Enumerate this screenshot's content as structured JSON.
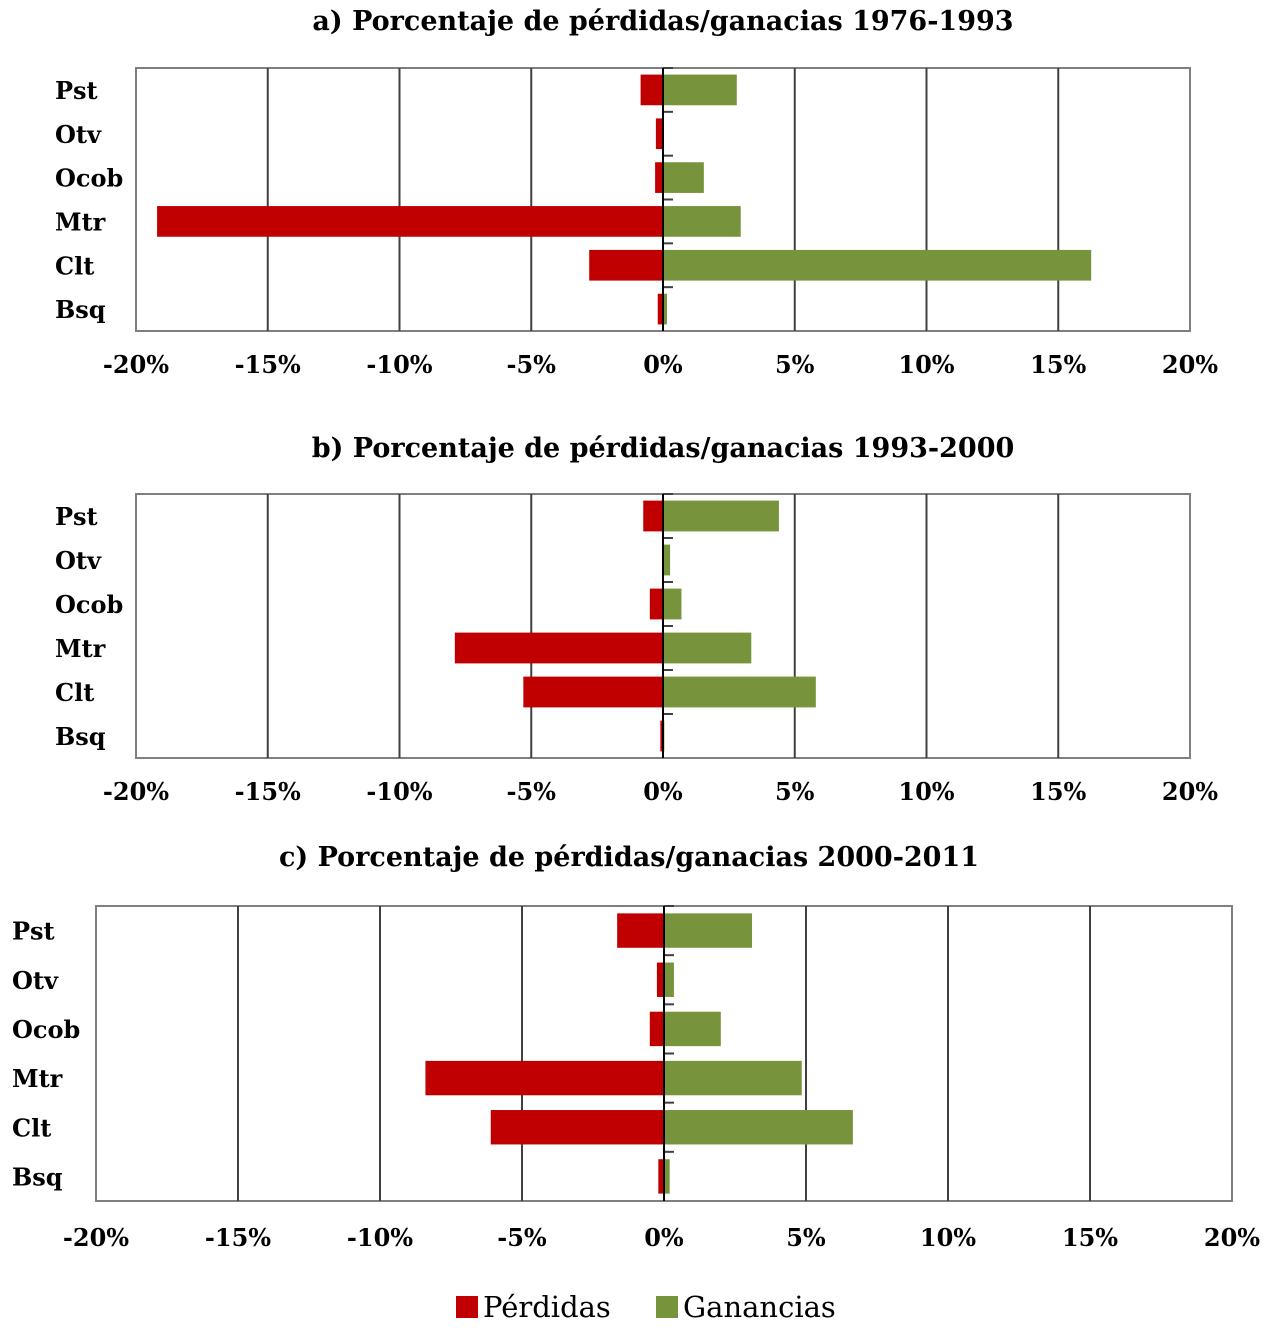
{
  "colors": {
    "loss": "#c00000",
    "gain": "#77933c"
  },
  "legend": [
    {
      "label": "Pérdidas",
      "series": "loss"
    },
    {
      "label": "Ganancias",
      "series": "gain"
    }
  ],
  "chart_data": [
    {
      "type": "bar",
      "orientation": "horizontal",
      "title": "a) Porcentaje de pérdidas/ganacias 1976-1993",
      "categories": [
        "Pst",
        "Otv",
        "Ocob",
        "Mtr",
        "Clt",
        "Bsq"
      ],
      "xlim": [
        -20,
        20
      ],
      "xticks": [
        "-20%",
        "-15%",
        "-10%",
        "-5%",
        "0%",
        "5%",
        "10%",
        "15%",
        "20%"
      ],
      "grid": true,
      "series": [
        {
          "name": "Pérdidas",
          "values": [
            -0.85,
            -0.27,
            -0.3,
            -19.2,
            -2.8,
            -0.2
          ]
        },
        {
          "name": "Ganancias",
          "values": [
            2.8,
            0,
            1.55,
            2.95,
            16.25,
            0.15
          ]
        }
      ]
    },
    {
      "type": "bar",
      "orientation": "horizontal",
      "title": "b) Porcentaje de pérdidas/ganacias 1993-2000",
      "categories": [
        "Pst",
        "Otv",
        "Ocob",
        "Mtr",
        "Clt",
        "Bsq"
      ],
      "xlim": [
        -20,
        20
      ],
      "xticks": [
        "-20%",
        "-15%",
        "-10%",
        "-5%",
        "0%",
        "5%",
        "10%",
        "15%",
        "20%"
      ],
      "grid": true,
      "series": [
        {
          "name": "Pérdidas",
          "values": [
            -0.75,
            0,
            -0.5,
            -7.9,
            -5.3,
            -0.1
          ]
        },
        {
          "name": "Ganancias",
          "values": [
            4.4,
            0.27,
            0.7,
            3.35,
            5.8,
            0.05
          ]
        }
      ]
    },
    {
      "type": "bar",
      "orientation": "horizontal",
      "title": "c) Porcentaje de pérdidas/ganacias 2000-2011",
      "categories": [
        "Pst",
        "Otv",
        "Ocob",
        "Mtr",
        "Clt",
        "Bsq"
      ],
      "xlim": [
        -20,
        20
      ],
      "xticks": [
        "-20%",
        "-15%",
        "-10%",
        "-5%",
        "0%",
        "5%",
        "10%",
        "15%",
        "20%"
      ],
      "grid": true,
      "series": [
        {
          "name": "Pérdidas",
          "values": [
            -1.65,
            -0.25,
            -0.5,
            -8.4,
            -6.1,
            -0.2
          ]
        },
        {
          "name": "Ganancias",
          "values": [
            3.1,
            0.35,
            2.0,
            4.85,
            6.65,
            0.2
          ]
        }
      ]
    }
  ]
}
